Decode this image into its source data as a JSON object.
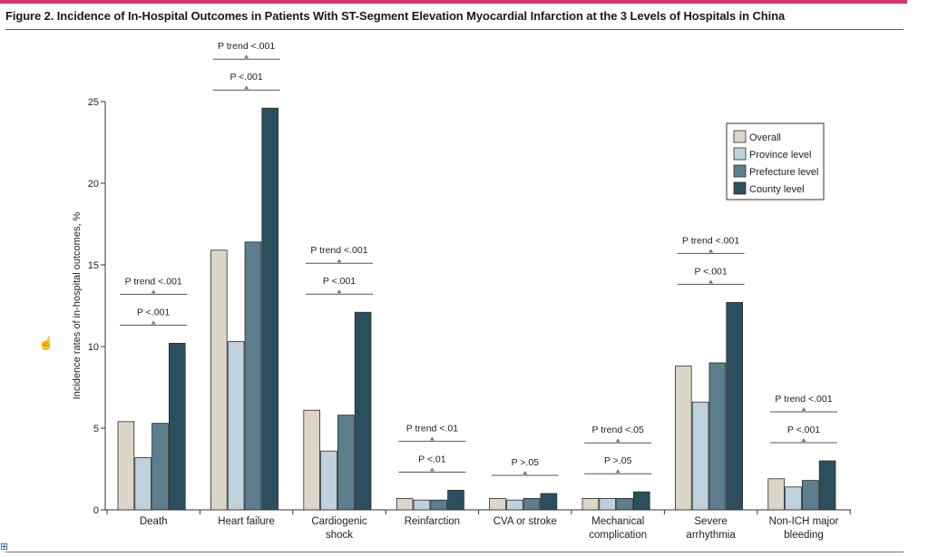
{
  "page": {
    "figure_title": "Figure 2. Incidence of In-Hospital Outcomes in Patients With ST-Segment Elevation Myocardial Infarction at the 3 Levels of Hospitals in China",
    "accent_color": "#d6336c"
  },
  "chart_data": {
    "type": "bar",
    "title": "Figure 2. Incidence of In-Hospital Outcomes in Patients With ST-Segment Elevation Myocardial Infarction at the 3 Levels of Hospitals in China",
    "xlabel": "",
    "ylabel": "Incidence rates of in-hospital outcomes, %",
    "ylim": [
      0,
      25
    ],
    "yticks": [
      0,
      5,
      10,
      15,
      20,
      25
    ],
    "grid": false,
    "legend_position": "top-right",
    "categories": [
      [
        "Death"
      ],
      [
        "Heart failure"
      ],
      [
        "Cardiogenic",
        "shock"
      ],
      [
        "Reinfarction"
      ],
      [
        "CVA or stroke"
      ],
      [
        "Mechanical",
        "complication"
      ],
      [
        "Severe",
        "arrhythmia"
      ],
      [
        "Non-ICH major",
        "bleeding"
      ]
    ],
    "series": [
      {
        "name": "Overall",
        "color": "#ddd5c8",
        "values": [
          5.4,
          15.9,
          6.1,
          0.7,
          0.7,
          0.7,
          8.8,
          1.9
        ]
      },
      {
        "name": "Province level",
        "color": "#bfd1dc",
        "values": [
          3.2,
          10.3,
          3.6,
          0.6,
          0.6,
          0.7,
          6.6,
          1.4
        ]
      },
      {
        "name": "Prefecture level",
        "color": "#5d7e8c",
        "values": [
          5.3,
          16.4,
          5.8,
          0.6,
          0.7,
          0.7,
          9.0,
          1.8
        ]
      },
      {
        "name": "County level",
        "color": "#2c4f5e",
        "values": [
          10.2,
          24.6,
          12.1,
          1.2,
          1.0,
          1.1,
          12.7,
          3.0
        ]
      }
    ],
    "annotations": [
      {
        "category": 0,
        "labels": [
          "P trend <.001",
          "P <.001"
        ]
      },
      {
        "category": 1,
        "labels": [
          "P trend <.001",
          "P <.001"
        ]
      },
      {
        "category": 2,
        "labels": [
          "P trend <.001",
          "P <.001"
        ]
      },
      {
        "category": 3,
        "labels": [
          "P trend <.01",
          "P <.01"
        ]
      },
      {
        "category": 4,
        "labels": [
          "P >.05"
        ]
      },
      {
        "category": 5,
        "labels": [
          "P trend <.05",
          "P >.05"
        ]
      },
      {
        "category": 6,
        "labels": [
          "P trend <.001",
          "P <.001"
        ]
      },
      {
        "category": 7,
        "labels": [
          "P trend <.001",
          "P <.001"
        ]
      }
    ]
  }
}
